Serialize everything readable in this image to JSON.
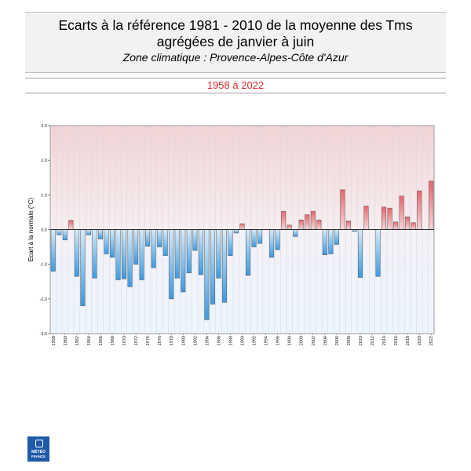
{
  "header": {
    "title": "Ecarts à la référence 1981 - 2010 de la moyenne des Tms agrégées de janvier à juin",
    "subtitle": "Zone climatique : Provence-Alpes-Côte d'Azur",
    "period": "1958 à 2022"
  },
  "logo": {
    "line1": "MÉTÉO",
    "line2": "FRANCE",
    "color": "#1e5aa8"
  },
  "colors": {
    "positive": "#e8656d",
    "negative": "#3a9be3",
    "title_red": "#d9262c"
  },
  "chart_data": {
    "type": "bar",
    "title": "",
    "xlabel": "",
    "ylabel": "Ecart à la normale (°C)",
    "ylim": [
      -3.0,
      3.0
    ],
    "yticks": [
      "3.0",
      "2.0",
      "1.0",
      "0.0",
      "-1.0",
      "-2.0",
      "-3.0"
    ],
    "grid": true,
    "categories": [
      "1958",
      "1959",
      "1960",
      "1961",
      "1962",
      "1963",
      "1964",
      "1965",
      "1966",
      "1967",
      "1968",
      "1969",
      "1970",
      "1971",
      "1972",
      "1973",
      "1974",
      "1975",
      "1976",
      "1977",
      "1978",
      "1979",
      "1980",
      "1981",
      "1982",
      "1983",
      "1984",
      "1985",
      "1986",
      "1987",
      "1988",
      "1989",
      "1990",
      "1991",
      "1992",
      "1993",
      "1994",
      "1995",
      "1996",
      "1997",
      "1998",
      "1999",
      "2000",
      "2001",
      "2002",
      "2003",
      "2004",
      "2005",
      "2006",
      "2007",
      "2008",
      "2009",
      "2010",
      "2011",
      "2012",
      "2013",
      "2014",
      "2015",
      "2016",
      "2017",
      "2018",
      "2019",
      "2020",
      "2021",
      "2022"
    ],
    "values": [
      -1.2,
      -0.15,
      -0.3,
      0.27,
      -1.35,
      -2.2,
      -0.15,
      -1.4,
      -0.27,
      -0.7,
      -0.8,
      -1.45,
      -1.42,
      -1.65,
      -1.0,
      -1.45,
      -0.48,
      -1.1,
      -0.5,
      -0.75,
      -2.0,
      -1.4,
      -1.8,
      -1.25,
      -0.6,
      -1.3,
      -2.6,
      -2.15,
      -1.4,
      -2.1,
      -0.75,
      -0.1,
      0.17,
      -1.32,
      -0.5,
      -0.4,
      0.0,
      -0.8,
      -0.58,
      0.53,
      0.13,
      -0.2,
      0.28,
      0.43,
      0.53,
      0.28,
      -0.73,
      -0.7,
      -0.43,
      1.15,
      0.25,
      -0.05,
      -1.38,
      0.68,
      0.0,
      -1.35,
      0.65,
      0.62,
      0.22,
      0.97,
      0.37,
      0.2,
      1.12,
      0.0,
      1.4
    ],
    "xtick_labels": [
      "1958",
      "1960",
      "1962",
      "1964",
      "1966",
      "1968",
      "1970",
      "1972",
      "1974",
      "1976",
      "1978",
      "1980",
      "1982",
      "1984",
      "1986",
      "1988",
      "1990",
      "1992",
      "1994",
      "1996",
      "1998",
      "2000",
      "2002",
      "2004",
      "2006",
      "2008",
      "2010",
      "2012",
      "2014",
      "2016",
      "2018",
      "2020",
      "2022"
    ]
  }
}
